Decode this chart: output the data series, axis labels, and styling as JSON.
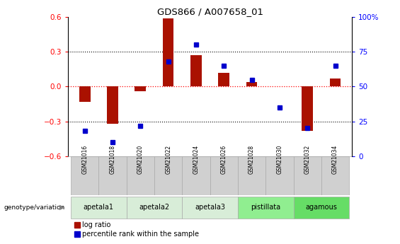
{
  "title": "GDS866 / A007658_01",
  "samples": [
    "GSM21016",
    "GSM21018",
    "GSM21020",
    "GSM21022",
    "GSM21024",
    "GSM21026",
    "GSM21028",
    "GSM21030",
    "GSM21032",
    "GSM21034"
  ],
  "log_ratio": [
    -0.13,
    -0.32,
    -0.04,
    0.59,
    0.27,
    0.12,
    0.04,
    0.0,
    -0.38,
    0.07
  ],
  "percentile_rank": [
    18,
    10,
    22,
    68,
    80,
    65,
    55,
    35,
    20,
    65
  ],
  "ylim_left": [
    -0.6,
    0.6
  ],
  "ylim_right": [
    0,
    100
  ],
  "yticks_left": [
    -0.6,
    -0.3,
    0.0,
    0.3,
    0.6
  ],
  "yticks_right": [
    0,
    25,
    50,
    75,
    100
  ],
  "bar_color": "#aa1100",
  "dot_color": "#0000cc",
  "bar_width": 0.4,
  "dot_size": 5,
  "legend_log_ratio": "log ratio",
  "legend_percentile": "percentile rank within the sample",
  "genotype_label": "genotype/variation",
  "sample_box_color": "#d0d0d0",
  "group_defs": [
    {
      "name": "apetala1",
      "idx": [
        0,
        1
      ],
      "color": "#d8edd8"
    },
    {
      "name": "apetala2",
      "idx": [
        2,
        3
      ],
      "color": "#d8edd8"
    },
    {
      "name": "apetala3",
      "idx": [
        4,
        5
      ],
      "color": "#d8edd8"
    },
    {
      "name": "pistillata",
      "idx": [
        6,
        7
      ],
      "color": "#90ee90"
    },
    {
      "name": "agamous",
      "idx": [
        8,
        9
      ],
      "color": "#66dd66"
    }
  ]
}
